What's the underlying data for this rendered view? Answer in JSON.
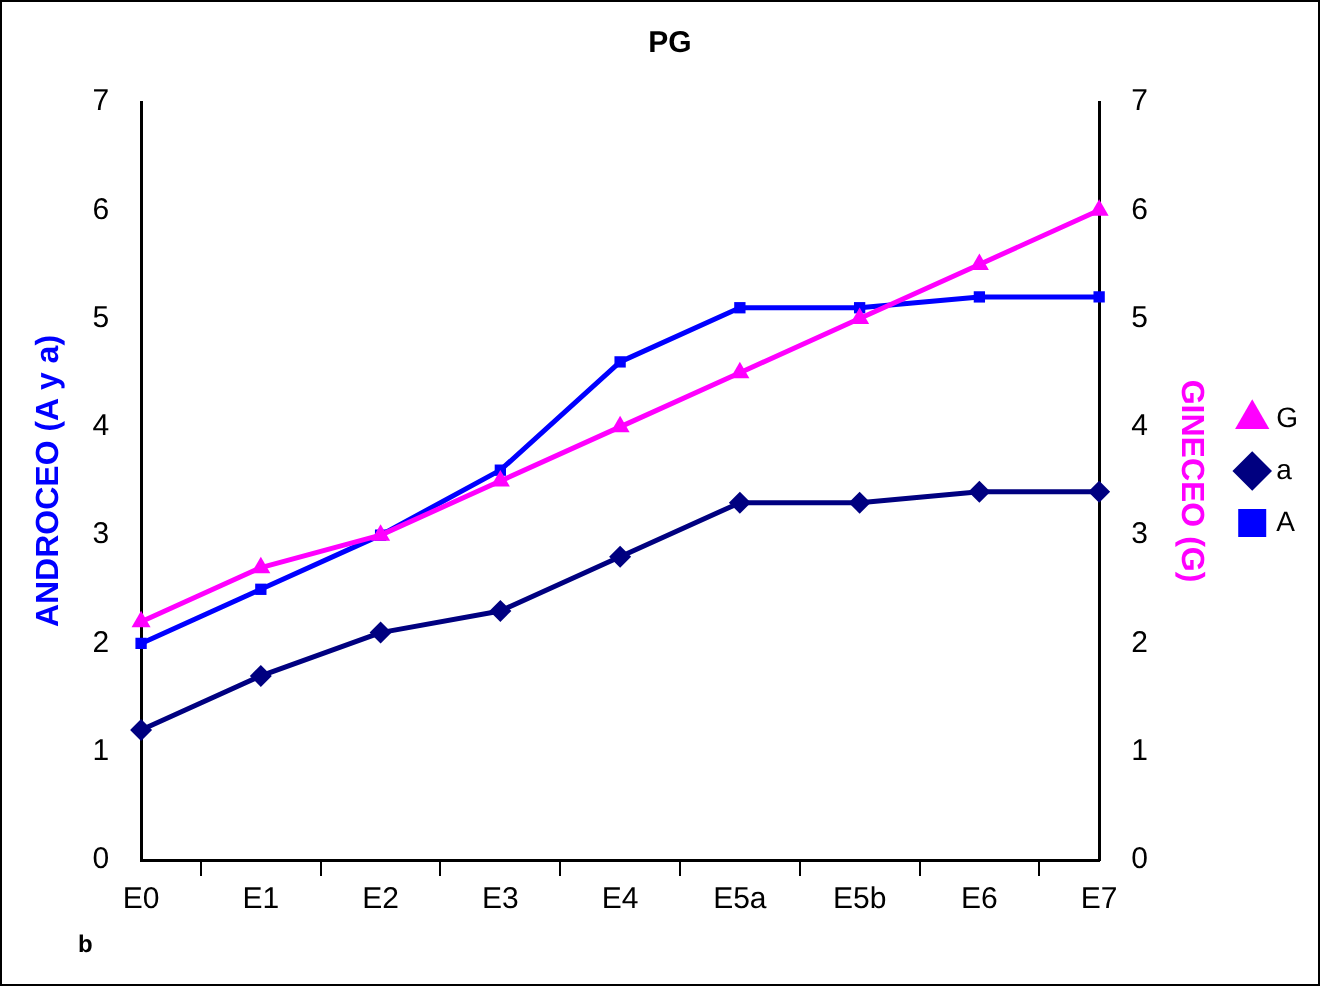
{
  "chart_data": {
    "type": "line",
    "title": "PG",
    "ylabel": "ANDROCEO (A y a)",
    "y2label": "GINECEO (G)",
    "categories": [
      "E0",
      "E1",
      "E2",
      "E3",
      "E4",
      "E5a",
      "E5b",
      "E6",
      "E7"
    ],
    "series": [
      {
        "name": "A",
        "color": "#0000ff",
        "marker": "square",
        "values": [
          2,
          2.5,
          3,
          3.6,
          4.6,
          5.1,
          5.1,
          5.2,
          5.2
        ]
      },
      {
        "name": "a",
        "color": "#000080",
        "marker": "diamond",
        "values": [
          1.2,
          1.7,
          2.1,
          2.3,
          2.8,
          3.3,
          3.3,
          3.4,
          3.4
        ]
      },
      {
        "name": "G",
        "color": "#ff00ff",
        "marker": "triangle",
        "axis": "y2",
        "values": [
          2.2,
          2.7,
          3,
          3.5,
          4,
          4.5,
          5,
          5.5,
          6
        ]
      }
    ],
    "ylim": [
      0,
      7
    ],
    "yticks": [
      0,
      1,
      2,
      3,
      4,
      5,
      6,
      7
    ],
    "y2lim": [
      0,
      7
    ],
    "y2ticks": [
      0,
      1,
      2,
      3,
      4,
      5,
      6,
      7
    ],
    "grid": false,
    "legend": "right",
    "annotations": [
      "b"
    ]
  }
}
